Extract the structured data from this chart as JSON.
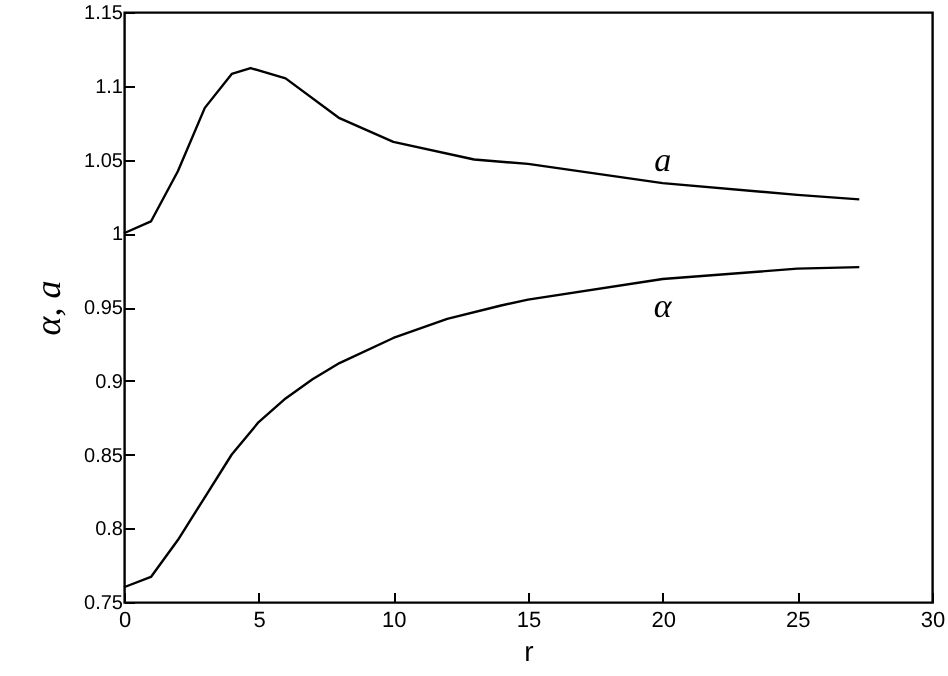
{
  "chart_data": {
    "type": "line",
    "xlabel": "r",
    "ylabel": "α, a",
    "xlim": [
      0,
      30
    ],
    "xticks": [
      0,
      5,
      10,
      15,
      20,
      25,
      30
    ],
    "ylim": [
      0.75,
      1.15
    ],
    "yticks": [
      0.75,
      0.8,
      0.85,
      0.9,
      0.95,
      1,
      1.05,
      1.1,
      1.15
    ],
    "grid": false,
    "line_style": "solid",
    "series": [
      {
        "name": "a",
        "color": "#000000",
        "x": [
          0,
          1,
          2,
          3,
          4,
          4.7,
          6,
          8,
          10,
          13,
          15,
          20,
          25,
          27.3
        ],
        "values": [
          1.0,
          1.008,
          1.042,
          1.085,
          1.108,
          1.112,
          1.105,
          1.078,
          1.062,
          1.05,
          1.047,
          1.034,
          1.026,
          1.023
        ]
      },
      {
        "name": "α",
        "color": "#000000",
        "x": [
          0,
          1,
          2,
          3,
          4,
          5,
          6,
          7,
          8,
          10,
          12,
          14,
          15,
          20,
          25,
          27.3
        ],
        "values": [
          0.76,
          0.767,
          0.792,
          0.821,
          0.85,
          0.872,
          0.888,
          0.901,
          0.912,
          0.929,
          0.942,
          0.951,
          0.955,
          0.969,
          0.976,
          0.977
        ]
      }
    ]
  }
}
